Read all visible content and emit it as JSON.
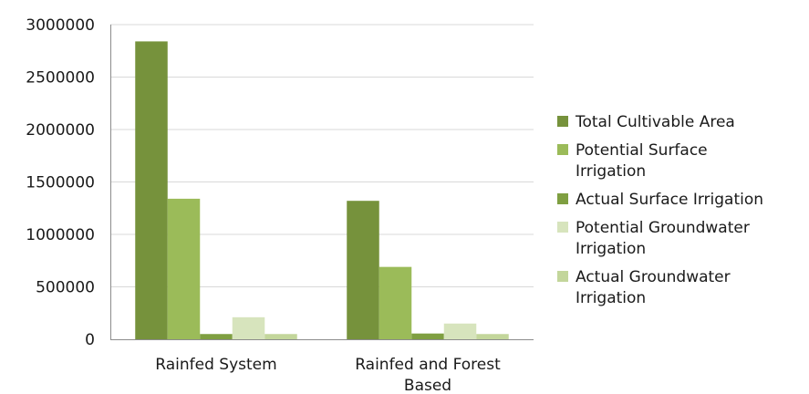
{
  "chart_data": {
    "type": "bar",
    "title": "",
    "xlabel": "",
    "ylabel": "",
    "ylim": [
      0,
      3000000
    ],
    "yticks": [
      "0",
      "500000",
      "1000000",
      "1500000",
      "2000000",
      "2500000",
      "3000000"
    ],
    "categories": [
      [
        "Rainfed System"
      ],
      [
        "Rainfed and Forest",
        "Based"
      ]
    ],
    "legend_position": "right",
    "series": [
      {
        "name": [
          "Total Cultivable Area"
        ],
        "color": "#76923c",
        "values": [
          2840000,
          1320000
        ]
      },
      {
        "name": [
          "Potential Surface",
          "Irrigation"
        ],
        "color": "#9bbb59",
        "values": [
          1340000,
          690000
        ]
      },
      {
        "name": [
          "Actual Surface Irrigation"
        ],
        "color": "#7f9f41",
        "values": [
          50000,
          55000
        ]
      },
      {
        "name": [
          "Potential Groundwater",
          "Irrigation"
        ],
        "color": "#d7e4bd",
        "values": [
          210000,
          150000
        ]
      },
      {
        "name": [
          "Actual Groundwater",
          "Irrigation"
        ],
        "color": "#c3d69b",
        "values": [
          50000,
          50000
        ]
      }
    ]
  }
}
